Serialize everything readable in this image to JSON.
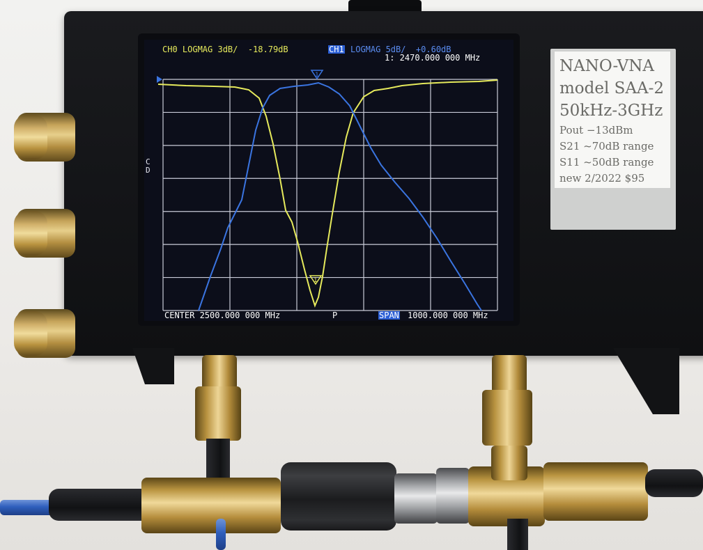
{
  "screen": {
    "ch0_header": "CH0 LOGMAG 3dB/  -18.79dB",
    "ch1_tag": "CH1",
    "ch1_header": "LOGMAG 5dB/  +0.60dB",
    "marker_readout": "1: 2470.000 000 MHz",
    "center_label": "CENTER 2500.000 000 MHz",
    "pause_label": "P",
    "span_tag": "SPAN",
    "span_value": "1000.000 000 MHz",
    "side_labels": [
      "C",
      "D"
    ],
    "marker_tag": "1",
    "colors": {
      "ch0_trace": "#e6ea5c",
      "ch1_trace": "#3a74e0",
      "grid": "#c9cbd8",
      "background": "#0c0e1a",
      "ch1_tag_bg": "#2b5fd6"
    }
  },
  "sticker": {
    "line1": "NANO-VNA",
    "line2": "model SAA-2",
    "line3": "50kHz-3GHz",
    "line4": "Pout −13dBm",
    "line5": "S21 ~70dB range",
    "line6": "S11 ~50dB range",
    "line7": "new 2/2022  $95"
  }
}
